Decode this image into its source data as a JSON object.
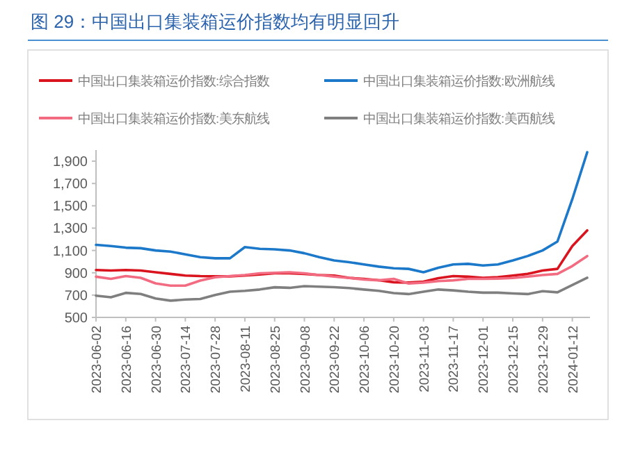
{
  "chart_data": {
    "type": "line",
    "title": "图 29：中国出口集装箱运价指数均有明显回升",
    "categories": [
      "2023-06-02",
      null,
      "2023-06-16",
      null,
      "2023-06-30",
      null,
      "2023-07-14",
      null,
      "2023-07-28",
      null,
      "2023-08-11",
      null,
      "2023-08-25",
      null,
      "2023-09-08",
      null,
      "2023-09-22",
      null,
      "2023-10-06",
      null,
      "2023-10-20",
      null,
      "2023-11-03",
      null,
      "2023-11-17",
      null,
      "2023-12-01",
      null,
      "2023-12-15",
      null,
      "2023-12-29",
      null,
      "2024-01-12",
      null
    ],
    "series": [
      {
        "name": "中国出口集装箱运价指数:综合指数",
        "color": "#d9141f",
        "values": [
          925,
          920,
          925,
          920,
          905,
          890,
          875,
          870,
          868,
          868,
          875,
          885,
          895,
          895,
          890,
          880,
          875,
          855,
          845,
          833,
          815,
          812,
          820,
          852,
          870,
          865,
          855,
          860,
          875,
          890,
          920,
          935,
          1140,
          1280
        ]
      },
      {
        "name": "中国出口集装箱运价指数:欧洲航线",
        "color": "#1c78c9",
        "values": [
          1150,
          1140,
          1125,
          1120,
          1100,
          1090,
          1065,
          1040,
          1030,
          1030,
          1130,
          1115,
          1110,
          1100,
          1075,
          1040,
          1010,
          995,
          975,
          955,
          940,
          935,
          905,
          945,
          975,
          980,
          965,
          975,
          1010,
          1050,
          1100,
          1180,
          1560,
          1980
        ]
      },
      {
        "name": "中国出口集装箱运价指数:美东航线",
        "color": "#f26b80",
        "values": [
          865,
          845,
          870,
          855,
          805,
          785,
          785,
          830,
          860,
          870,
          880,
          895,
          900,
          905,
          895,
          880,
          866,
          853,
          840,
          832,
          845,
          804,
          812,
          825,
          832,
          845,
          845,
          848,
          853,
          866,
          880,
          890,
          960,
          1050
        ]
      },
      {
        "name": "中国出口集装箱运价指数:美西航线",
        "color": "#7f7f7f",
        "values": [
          695,
          680,
          720,
          710,
          670,
          650,
          660,
          665,
          700,
          730,
          738,
          750,
          770,
          765,
          780,
          775,
          771,
          763,
          750,
          738,
          718,
          709,
          730,
          750,
          742,
          730,
          722,
          722,
          715,
          709,
          735,
          725,
          790,
          855
        ]
      }
    ],
    "ylim": [
      500,
      2000
    ],
    "yticks": [
      500,
      700,
      900,
      {
        "value": 1100,
        "label": "1,100"
      },
      {
        "value": 1300,
        "label": "1,300"
      },
      {
        "value": 1500,
        "label": "1,500"
      },
      {
        "value": 1700,
        "label": "1,700"
      },
      {
        "value": 1900,
        "label": "1,900"
      }
    ],
    "legend": "top"
  }
}
